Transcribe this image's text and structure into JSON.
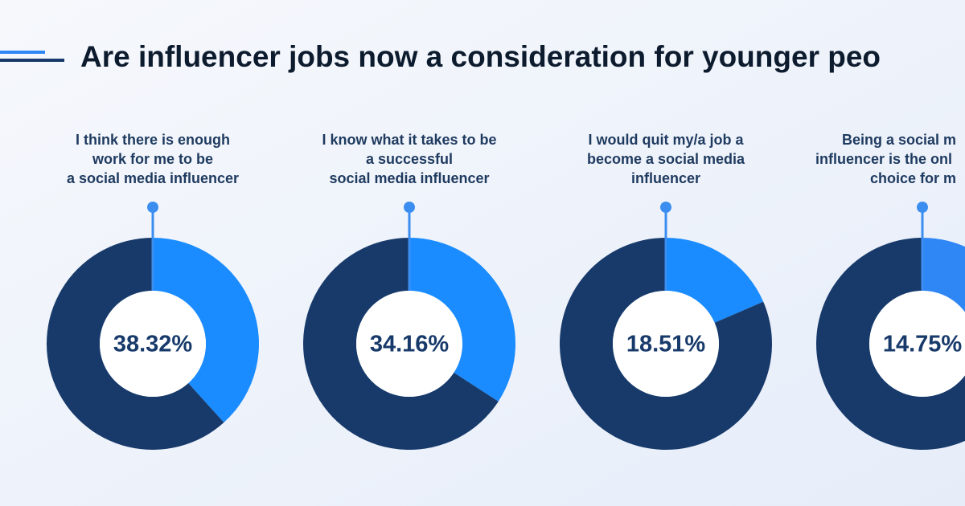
{
  "header": {
    "title": "Are influencer jobs now a consideration for younger peo"
  },
  "chart_data": [
    {
      "type": "pie",
      "title": [
        "I think there is enough",
        "work for me to be",
        "a social media influencer"
      ],
      "values": [
        38.32,
        61.68
      ],
      "value_labels": [
        "38.32%",
        null
      ],
      "colors": [
        "#1a8cff",
        "#173a6b"
      ]
    },
    {
      "type": "pie",
      "title": [
        "I know what it takes to be",
        "a successful",
        "social media influencer"
      ],
      "values": [
        34.16,
        65.84
      ],
      "value_labels": [
        "34.16%",
        null
      ],
      "colors": [
        "#1a8cff",
        "#173a6b"
      ]
    },
    {
      "type": "pie",
      "title": [
        "I would quit my/a job a",
        "become a social media",
        "influencer"
      ],
      "values": [
        18.51,
        81.49
      ],
      "value_labels": [
        "18.51%",
        null
      ],
      "colors": [
        "#1a8cff",
        "#173a6b"
      ]
    },
    {
      "type": "pie",
      "title": [
        "Being a social m",
        "influencer is the onl",
        "choice for m"
      ],
      "values": [
        14.75,
        85.25
      ],
      "value_labels": [
        "14.75%",
        null
      ],
      "colors": [
        "#2f86f5",
        "#173a6b"
      ]
    }
  ]
}
